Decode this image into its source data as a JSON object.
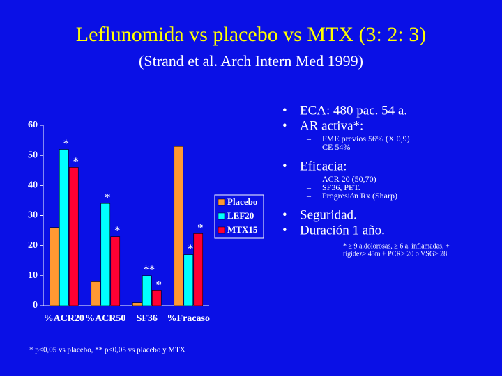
{
  "title": "Leflunomida vs placebo vs MTX (3: 2: 3)",
  "subtitle": "(Strand et al. Arch Intern Med 1999)",
  "bullets": [
    {
      "text": "ECA: 480 pac. 54 a."
    },
    {
      "text": "AR activa*:",
      "sub": [
        "FME previos 56% (X 0,9)",
        "CE 54%"
      ]
    },
    {
      "text": "Eficacia:",
      "sub": [
        "ACR 20  (50,70)",
        "SF36, PET.",
        "Progresión Rx (Sharp)"
      ]
    },
    {
      "text": "Seguridad."
    },
    {
      "text": "Duración 1 año."
    }
  ],
  "note": [
    "* ≥ 9 a.dolorosas, ≥ 6 a. inflamadas, +",
    "rigidez≥ 45m + PCR> 20 o VSG> 28"
  ],
  "footnote": "* p<0,05 vs placebo, ** p<0,05 vs placebo y MTX",
  "chart_data": {
    "type": "bar",
    "categories": [
      "%ACR20",
      "%ACR50",
      "SF36",
      "%Fracaso"
    ],
    "series": [
      {
        "name": "Placebo",
        "color": "#ff9933",
        "values": [
          26,
          8,
          1,
          53
        ]
      },
      {
        "name": "LEF20",
        "color": "#00ffff",
        "values": [
          52,
          34,
          10,
          17
        ],
        "annotations": [
          "*",
          "*",
          "**",
          "*"
        ]
      },
      {
        "name": "MTX15",
        "color": "#ff0033",
        "values": [
          46,
          23,
          5,
          24
        ],
        "annotations": [
          "*",
          "*",
          "*",
          "*"
        ]
      }
    ],
    "ylim": [
      0,
      60
    ],
    "yticks": [
      0,
      10,
      20,
      30,
      40,
      50,
      60
    ],
    "legend": "right"
  }
}
